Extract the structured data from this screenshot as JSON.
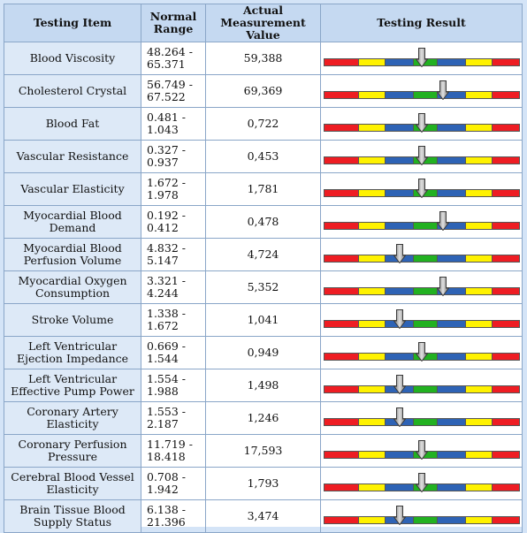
{
  "headers": {
    "item": "Testing Item",
    "range": "Normal Range",
    "value": "Actual Measurement Value",
    "result": "Testing Result"
  },
  "segment_colors": [
    "#ee1d23",
    "#fff200",
    "#2e63b5",
    "#22b121",
    "#2e63b5",
    "#fff200",
    "#ee1d23"
  ],
  "rows": [
    {
      "item": "Blood Viscosity",
      "range": "48.264 - 65.371",
      "value": "59,388",
      "result_level": 0.5
    },
    {
      "item": "Cholesterol Crystal",
      "range": "56.749 - 67.522",
      "value": "69,369",
      "result_level": 0.61
    },
    {
      "item": "Blood Fat",
      "range": "0.481 - 1.043",
      "value": "0,722",
      "result_level": 0.5
    },
    {
      "item": "Vascular Resistance",
      "range": "0.327 - 0.937",
      "value": "0,453",
      "result_level": 0.5
    },
    {
      "item": "Vascular Elasticity",
      "range": "1.672 - 1.978",
      "value": "1,781",
      "result_level": 0.5
    },
    {
      "item": "Myocardial Blood Demand",
      "range": "0.192 - 0.412",
      "value": "0,478",
      "result_level": 0.61
    },
    {
      "item": "Myocardial Blood Perfusion Volume",
      "range": "4.832 - 5.147",
      "value": "4,724",
      "result_level": 0.39
    },
    {
      "item": "Myocardial Oxygen Consumption",
      "range": "3.321 - 4.244",
      "value": "5,352",
      "result_level": 0.61
    },
    {
      "item": "Stroke Volume",
      "range": "1.338 - 1.672",
      "value": "1,041",
      "result_level": 0.39
    },
    {
      "item": "Left Ventricular Ejection Impedance",
      "range": "0.669 - 1.544",
      "value": "0,949",
      "result_level": 0.5
    },
    {
      "item": "Left Ventricular Effective Pump Power",
      "range": "1.554 - 1.988",
      "value": "1,498",
      "result_level": 0.39
    },
    {
      "item": "Coronary Artery Elasticity",
      "range": "1.553 - 2.187",
      "value": "1,246",
      "result_level": 0.39
    },
    {
      "item": "Coronary Perfusion Pressure",
      "range": "11.719 - 18.418",
      "value": "17,593",
      "result_level": 0.5
    },
    {
      "item": "Cerebral Blood Vessel Elasticity",
      "range": "0.708 - 1.942",
      "value": "1,793",
      "result_level": 0.5
    },
    {
      "item": "Brain Tissue Blood Supply Status",
      "range": "6.138 - 21.396",
      "value": "3,474",
      "result_level": 0.39
    }
  ]
}
